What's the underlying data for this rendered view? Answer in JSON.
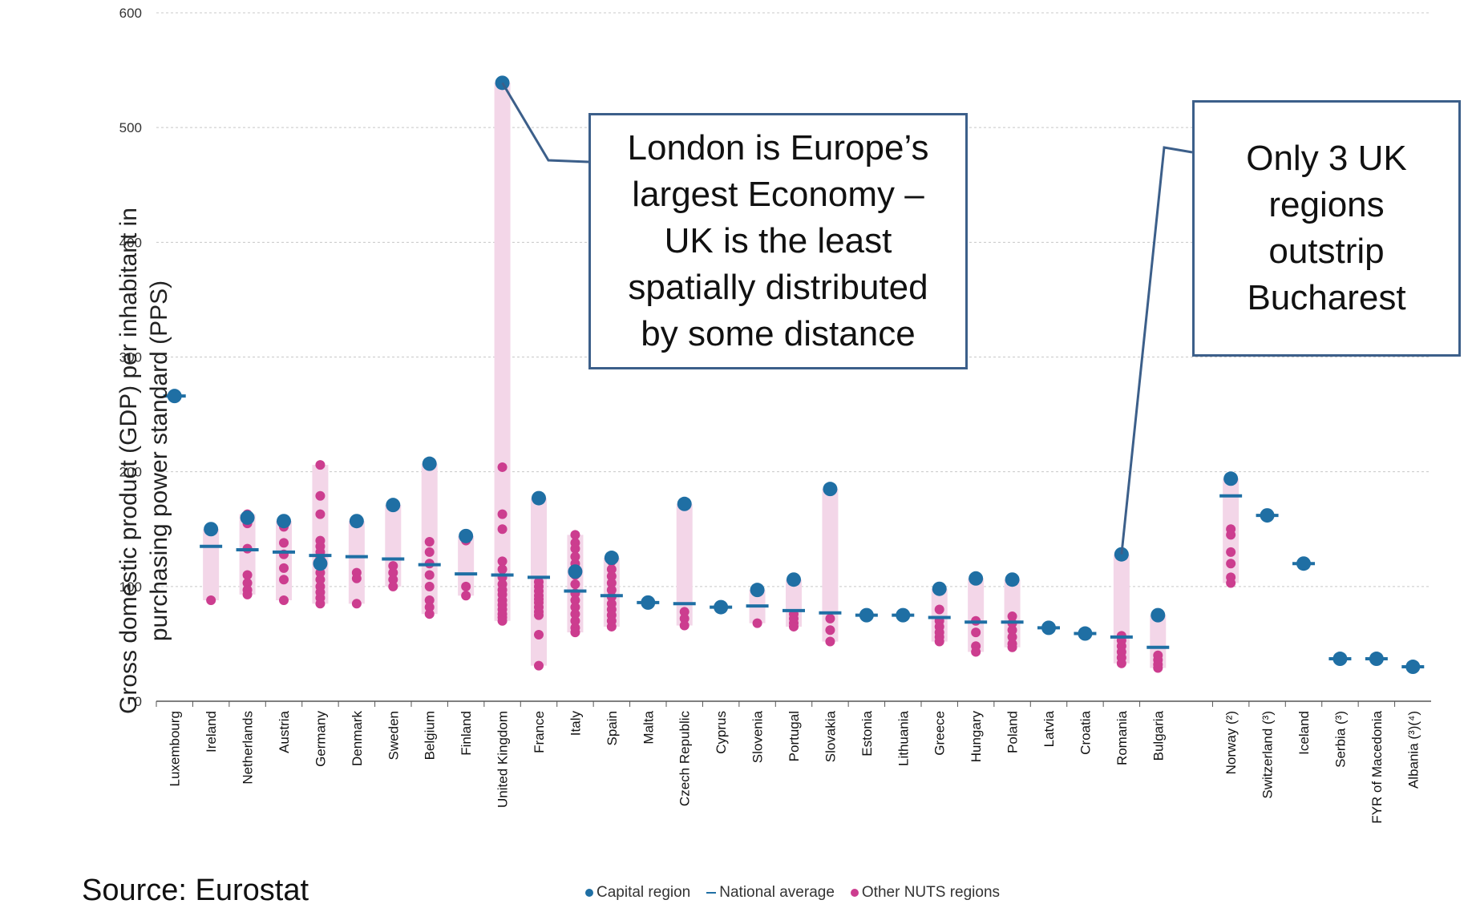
{
  "chart_data": {
    "type": "scatter",
    "ylabel": "Gross domestic product (GDP) per inhabitant in purchasing power standard (PPS)",
    "ylim": [
      0,
      600
    ],
    "yticks": [
      0,
      100,
      200,
      300,
      400,
      500,
      600
    ],
    "grid": true,
    "legend_position": "bottom",
    "colors": {
      "capital": "#1f6fa4",
      "average": "#1f6fa4",
      "other": "#cc3d8f",
      "range": "#f3d6e8"
    },
    "legend": [
      "Capital region",
      "National average",
      "Other NUTS regions"
    ],
    "countries": [
      {
        "name": "Luxembourg",
        "capital": 266,
        "average": 266,
        "others": []
      },
      {
        "name": "Ireland",
        "capital": 150,
        "average": 135,
        "others": [
          88
        ]
      },
      {
        "name": "Netherlands",
        "capital": 160,
        "average": 132,
        "others": [
          163,
          155,
          133,
          110,
          103,
          97,
          93
        ]
      },
      {
        "name": "Austria",
        "capital": 157,
        "average": 130,
        "others": [
          152,
          138,
          128,
          116,
          106,
          88
        ]
      },
      {
        "name": "Germany",
        "capital": 120,
        "average": 127,
        "others": [
          206,
          179,
          163,
          140,
          135,
          130,
          125,
          118,
          112,
          106,
          100,
          95,
          90,
          85
        ]
      },
      {
        "name": "Denmark",
        "capital": 157,
        "average": 126,
        "others": [
          112,
          107,
          85
        ]
      },
      {
        "name": "Sweden",
        "capital": 171,
        "average": 124,
        "others": [
          118,
          112,
          106,
          100
        ]
      },
      {
        "name": "Belgium",
        "capital": 207,
        "average": 119,
        "others": [
          139,
          130,
          120,
          110,
          100,
          88,
          82,
          76
        ]
      },
      {
        "name": "Finland",
        "capital": 144,
        "average": 111,
        "others": [
          140,
          100,
          92
        ]
      },
      {
        "name": "United Kingdom",
        "capital": 539,
        "average": 110,
        "others": [
          204,
          163,
          150,
          122,
          115,
          108,
          102,
          97,
          93,
          88,
          84,
          80,
          76,
          73,
          70
        ]
      },
      {
        "name": "France",
        "capital": 177,
        "average": 108,
        "others": [
          104,
          100,
          96,
          92,
          89,
          86,
          82,
          78,
          75,
          58,
          31
        ]
      },
      {
        "name": "Italy",
        "capital": 113,
        "average": 96,
        "others": [
          145,
          138,
          133,
          126,
          120,
          110,
          102,
          94,
          88,
          82,
          76,
          70,
          64,
          60
        ]
      },
      {
        "name": "Spain",
        "capital": 125,
        "average": 92,
        "others": [
          122,
          115,
          109,
          103,
          97,
          91,
          85,
          80,
          75,
          70,
          65
        ]
      },
      {
        "name": "Malta",
        "capital": 86,
        "average": 86,
        "others": []
      },
      {
        "name": "Czech Republic",
        "capital": 172,
        "average": 85,
        "others": [
          78,
          72,
          66
        ]
      },
      {
        "name": "Cyprus",
        "capital": 82,
        "average": 82,
        "others": []
      },
      {
        "name": "Slovenia",
        "capital": 97,
        "average": 83,
        "others": [
          68
        ]
      },
      {
        "name": "Portugal",
        "capital": 106,
        "average": 79,
        "others": [
          76,
          72,
          68,
          65
        ]
      },
      {
        "name": "Slovakia",
        "capital": 185,
        "average": 77,
        "others": [
          72,
          62,
          52
        ]
      },
      {
        "name": "Estonia",
        "capital": 75,
        "average": 75,
        "others": []
      },
      {
        "name": "Lithuania",
        "capital": 75,
        "average": 75,
        "others": []
      },
      {
        "name": "Greece",
        "capital": 98,
        "average": 73,
        "others": [
          80,
          70,
          65,
          60,
          56,
          52
        ]
      },
      {
        "name": "Hungary",
        "capital": 107,
        "average": 69,
        "others": [
          70,
          60,
          48,
          43
        ]
      },
      {
        "name": "Poland",
        "capital": 106,
        "average": 69,
        "others": [
          74,
          68,
          62,
          56,
          50,
          47
        ]
      },
      {
        "name": "Latvia",
        "capital": 64,
        "average": 64,
        "others": []
      },
      {
        "name": "Croatia",
        "capital": 59,
        "average": 59,
        "others": [
          58
        ]
      },
      {
        "name": "Romania",
        "capital": 128,
        "average": 56,
        "others": [
          57,
          53,
          48,
          43,
          38,
          33
        ]
      },
      {
        "name": "Bulgaria",
        "capital": 75,
        "average": 47,
        "others": [
          40,
          36,
          32,
          29
        ]
      },
      {
        "name": "Norway (²)",
        "capital": 194,
        "average": 179,
        "others": [
          150,
          145,
          130,
          120,
          108,
          103
        ]
      },
      {
        "name": "Switzerland (³)",
        "capital": 162,
        "average": 162,
        "others": []
      },
      {
        "name": "Iceland",
        "capital": 120,
        "average": 120,
        "others": []
      },
      {
        "name": "Serbia (³)",
        "capital": 37,
        "average": 37,
        "others": []
      },
      {
        "name": "FYR of Macedonia",
        "capital": 37,
        "average": 37,
        "others": []
      },
      {
        "name": "Albania (³)(⁴)",
        "capital": 30,
        "average": 30,
        "others": []
      }
    ]
  },
  "annotations": {
    "callout1": "London is Europe’s largest Economy – UK is the least spatially distributed by some distance",
    "callout2": "Only 3 UK regions outstrip Bucharest"
  },
  "source": "Source: Eurostat"
}
